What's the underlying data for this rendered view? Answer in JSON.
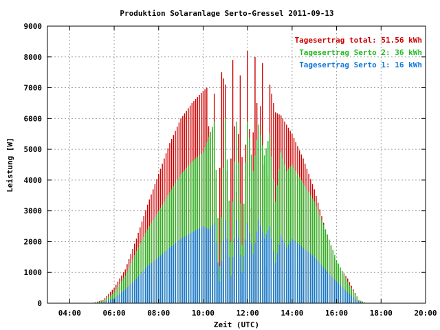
{
  "chart_data": {
    "type": "bar",
    "title": "Produktion Solaranlage Serto-Gressel 2011-09-13",
    "xlabel": "Zeit (UTC)",
    "ylabel": "Leistung [W]",
    "xlim": [
      "03:00",
      "20:00"
    ],
    "ylim": [
      0,
      9000
    ],
    "grid": true,
    "x_ticks": [
      "04:00",
      "06:00",
      "08:00",
      "10:00",
      "12:00",
      "14:00",
      "16:00",
      "18:00",
      "20:00"
    ],
    "y_ticks": [
      "0",
      "1000",
      "2000",
      "3000",
      "4000",
      "5000",
      "6000",
      "7000",
      "8000",
      "9000"
    ],
    "legend_position": "top-right",
    "sampling_interval_minutes": 5,
    "series": [
      {
        "name": "Tagesertrag total: 51.56 kWh",
        "color": "#cc0000",
        "sample_times": [
          "05:00",
          "05:30",
          "06:00",
          "06:30",
          "07:00",
          "07:30",
          "08:00",
          "08:30",
          "09:00",
          "09:30",
          "10:00",
          "10:10",
          "10:20",
          "10:30",
          "10:40",
          "10:50",
          "11:00",
          "11:10",
          "11:20",
          "11:30",
          "11:40",
          "11:50",
          "12:00",
          "12:10",
          "12:20",
          "12:30",
          "12:40",
          "12:50",
          "13:00",
          "13:15",
          "13:30",
          "13:45",
          "14:00",
          "14:30",
          "15:00",
          "15:30",
          "16:00",
          "16:30",
          "17:00",
          "17:20"
        ],
        "values": [
          0,
          100,
          500,
          1100,
          2100,
          3200,
          4200,
          5200,
          6000,
          6500,
          6900,
          7000,
          4500,
          6800,
          1300,
          7500,
          7100,
          1500,
          7900,
          3600,
          7400,
          2100,
          8200,
          3100,
          8000,
          5000,
          7800,
          1200,
          7100,
          6200,
          6100,
          5800,
          5500,
          4700,
          3700,
          2400,
          1300,
          800,
          100,
          0
        ]
      },
      {
        "name": "Tagesertrag Serto 2: 36 kWh",
        "color": "#22bb22",
        "sample_times": [
          "05:00",
          "05:30",
          "06:00",
          "06:30",
          "07:00",
          "07:30",
          "08:00",
          "08:30",
          "09:00",
          "09:30",
          "10:00",
          "10:15",
          "10:30",
          "10:45",
          "11:00",
          "11:15",
          "11:30",
          "11:45",
          "12:00",
          "12:15",
          "12:30",
          "12:45",
          "13:00",
          "13:15",
          "13:30",
          "13:45",
          "14:00",
          "14:30",
          "15:00",
          "15:30",
          "16:00",
          "16:30",
          "17:00",
          "17:20"
        ],
        "values": [
          0,
          70,
          350,
          900,
          1700,
          2400,
          3000,
          3600,
          4200,
          4600,
          4900,
          5400,
          5900,
          1200,
          6000,
          2000,
          5900,
          1900,
          5900,
          4300,
          5800,
          4800,
          5500,
          3300,
          4900,
          4300,
          4500,
          3900,
          3300,
          2400,
          1400,
          700,
          100,
          0
        ]
      },
      {
        "name": "Tagesertrag Serto 1: 16 kWh",
        "color": "#1177dd",
        "sample_times": [
          "05:00",
          "05:30",
          "06:00",
          "06:30",
          "07:00",
          "07:30",
          "08:00",
          "08:30",
          "09:00",
          "09:30",
          "10:00",
          "10:15",
          "10:30",
          "10:45",
          "11:00",
          "11:15",
          "11:30",
          "11:45",
          "12:00",
          "12:15",
          "12:30",
          "12:45",
          "13:00",
          "13:15",
          "13:30",
          "13:45",
          "14:00",
          "14:30",
          "15:00",
          "15:30",
          "16:00",
          "16:30",
          "17:00",
          "17:20"
        ],
        "values": [
          0,
          30,
          160,
          450,
          800,
          1200,
          1500,
          1800,
          2100,
          2300,
          2500,
          2400,
          2600,
          700,
          2700,
          900,
          2700,
          1000,
          2600,
          1600,
          2700,
          2100,
          2500,
          1300,
          2200,
          1800,
          2100,
          1800,
          1500,
          1100,
          700,
          350,
          50,
          0
        ]
      }
    ]
  }
}
